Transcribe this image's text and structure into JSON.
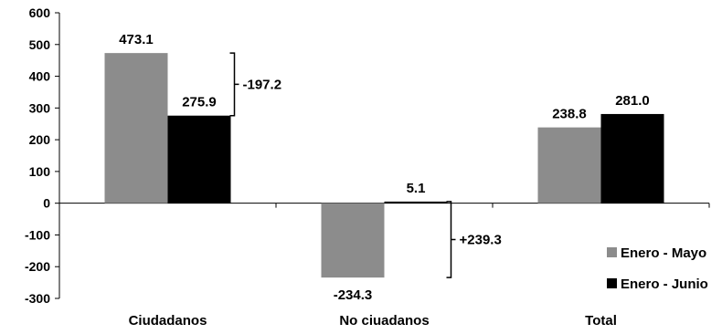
{
  "chart_data": {
    "type": "bar",
    "categories": [
      "Ciudadanos",
      "No ciuadanos",
      "Total"
    ],
    "series": [
      {
        "name": "Enero - Mayo",
        "values": [
          473.1,
          -234.3,
          238.8
        ],
        "labels": [
          "473.1",
          "-234.3",
          "238.8"
        ],
        "color": "#8c8c8c"
      },
      {
        "name": "Enero - Junio",
        "values": [
          275.9,
          5.1,
          281.0
        ],
        "labels": [
          "275.9",
          "5.1",
          "281.0"
        ],
        "color": "#000000"
      }
    ],
    "ylim": [
      -300,
      600
    ],
    "yticks": [
      "600",
      "500",
      "400",
      "300",
      "200",
      "100",
      "0",
      "-100",
      "-200",
      "-300"
    ],
    "annotations": [
      {
        "category_index": 0,
        "text": "-197.2"
      },
      {
        "category_index": 1,
        "text": "+239.3"
      }
    ],
    "legend_position": "bottom-right",
    "grid": false
  }
}
